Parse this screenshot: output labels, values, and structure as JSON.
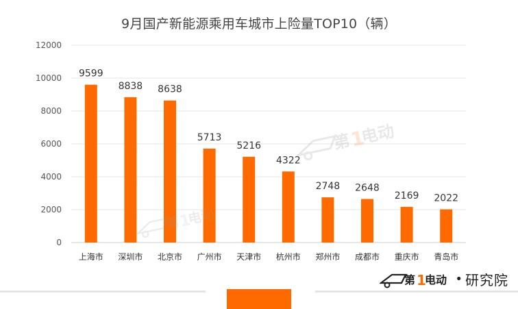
{
  "chart_data": {
    "type": "bar",
    "title": "9月国产新能源乘用车城市上险量TOP10（辆）",
    "categories": [
      "上海市",
      "深圳市",
      "北京市",
      "广州市",
      "天津市",
      "杭州市",
      "郑州市",
      "成都市",
      "重庆市",
      "青岛市"
    ],
    "values": [
      9599,
      8838,
      8638,
      5713,
      5216,
      4322,
      2748,
      2648,
      2169,
      2022
    ],
    "ylim": [
      0,
      12000
    ],
    "yticks": [
      0,
      2000,
      4000,
      6000,
      8000,
      10000,
      12000
    ],
    "grid": true,
    "legend": "none",
    "bar_color": "#ff6a00"
  },
  "branding": {
    "footer_org": "研究院",
    "footer_logo": "第1电动",
    "watermark": "第1电动",
    "accent_color": "#ff6a00"
  }
}
